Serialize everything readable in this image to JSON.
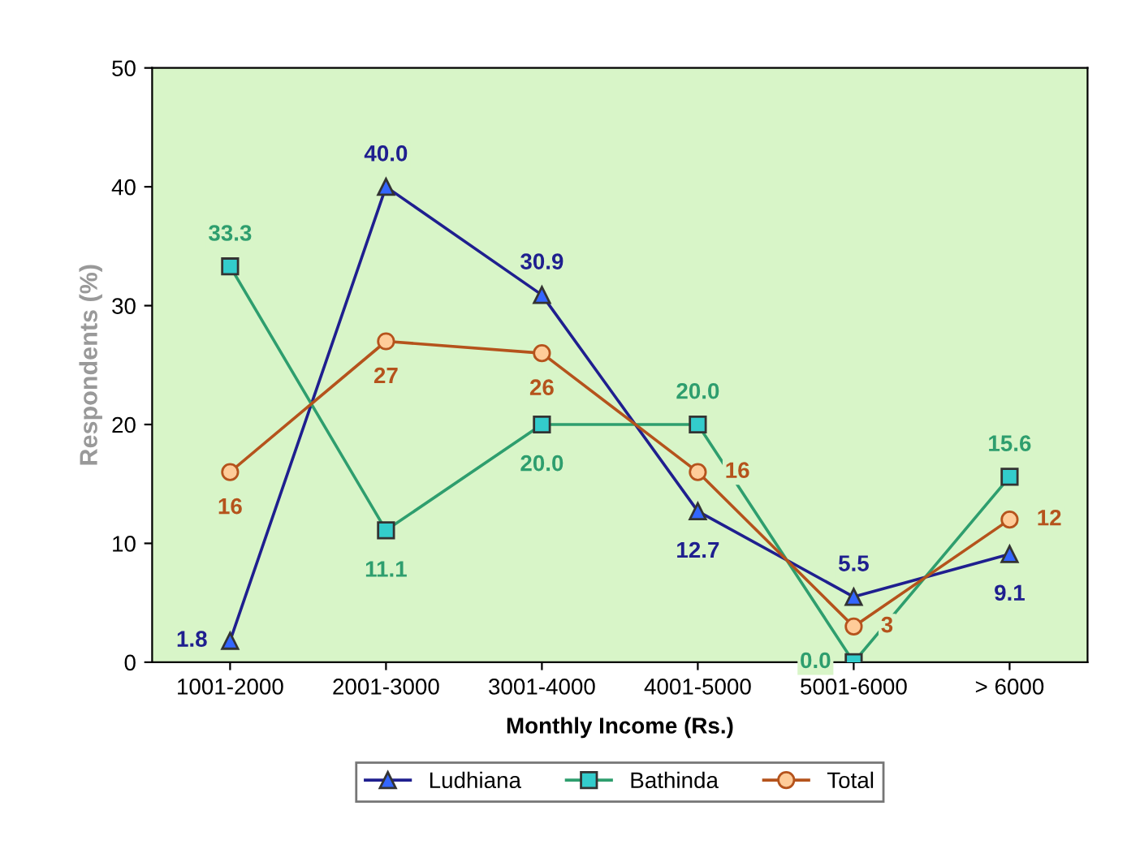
{
  "chart_data": {
    "type": "line",
    "xlabel": "Monthly Income (Rs.)",
    "ylabel": "Respondents (%)",
    "categories": [
      "1001-2000",
      "2001-3000",
      "3001-4000",
      "4001-5000",
      "5001-6000",
      "> 6000"
    ],
    "series": [
      {
        "name": "Ludhiana",
        "color": "#1f1f8f",
        "marker": "triangle",
        "values": [
          1.8,
          40.0,
          30.9,
          12.7,
          5.5,
          9.1
        ]
      },
      {
        "name": "Bathinda",
        "color": "#2e9e6e",
        "marker": "square",
        "values": [
          33.3,
          11.1,
          20.0,
          20.0,
          0.0,
          15.6
        ]
      },
      {
        "name": "Total",
        "color": "#b5531c",
        "marker": "circle",
        "values": [
          16,
          27,
          26,
          16,
          3,
          12
        ]
      }
    ],
    "value_labels": [
      [
        "1.8",
        "40.0",
        "30.9",
        "12.7",
        "5.5",
        "9.1"
      ],
      [
        "33.3",
        "11.1",
        "20.0",
        "20.0",
        "0.0",
        "15.6"
      ],
      [
        "16",
        "27",
        "26",
        "16",
        "3",
        "12"
      ]
    ],
    "ylim": [
      0,
      50
    ],
    "yticks": [
      0,
      10,
      20,
      30,
      40,
      50
    ],
    "grid": false,
    "legend": "bottom"
  }
}
